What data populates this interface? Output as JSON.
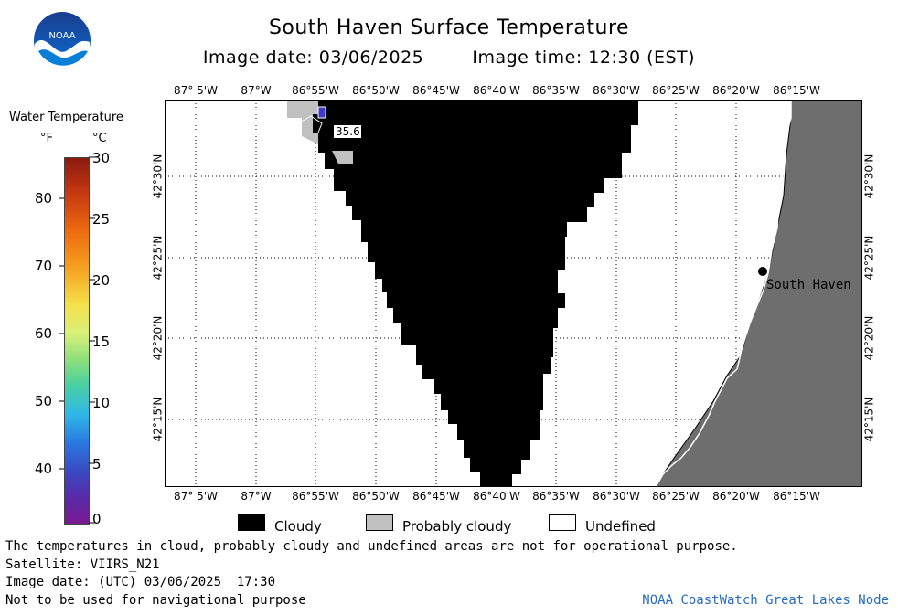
{
  "header": {
    "title": "South Haven Surface Temperature",
    "date_text": "Image date: 03/06/2025",
    "time_text": "Image time: 12:30 (EST)"
  },
  "logo": {
    "text": "NOAA"
  },
  "colorbar": {
    "title": "Water Temperature",
    "unit_f": "°F",
    "unit_c": "°C",
    "f_ticks": [
      "80",
      "70",
      "60",
      "50",
      "40"
    ],
    "c_ticks": [
      "30",
      "25",
      "20",
      "15",
      "10",
      "5",
      "0"
    ]
  },
  "map": {
    "lon_labels": [
      "87° 5'W",
      "87°W",
      "86°55'W",
      "86°50'W",
      "86°45'W",
      "86°40'W",
      "86°35'W",
      "86°30'W",
      "86°25'W",
      "86°20'W",
      "86°15'W"
    ],
    "lat_labels": [
      "42°30'N",
      "42°25'N",
      "42°20'N",
      "42°15'N"
    ],
    "city_label": "South Haven",
    "temp_annotation": "35.6",
    "colors": {
      "cloud": "#000000",
      "probably_cloudy": "#c0c0c0",
      "land": "#6e6e6e",
      "water_sample": "#3c3cc8"
    }
  },
  "legend": {
    "cloudy": "Cloudy",
    "probably_cloudy": "Probably cloudy",
    "undefined": "Undefined"
  },
  "footer": {
    "disclaimer": "The temperatures in cloud, probably cloudy and undefined areas are not for operational purpose.",
    "satellite": "Satellite: VIIRS_N21",
    "utc_date": "Image date: (UTC) 03/06/2025  17:30",
    "nav_warning": "Not to be used for navigational purpose",
    "credit": "NOAA CoastWatch Great Lakes Node"
  }
}
